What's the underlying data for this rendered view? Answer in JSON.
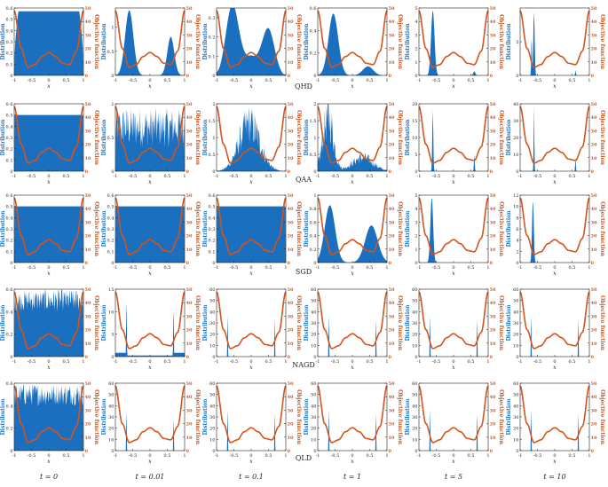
{
  "colors": {
    "dist": "#1a6fbf",
    "obj": "#d4541a",
    "axis": "#222222"
  },
  "labels": {
    "dist": "Distribution",
    "obj": "Objective function",
    "x": "x"
  },
  "x_ticks": [
    "-1",
    "-0.5",
    "0",
    "0.5",
    "1"
  ],
  "right_ticks": [
    "0",
    "10",
    "20",
    "30",
    "40",
    "50"
  ],
  "rows": [
    {
      "name": "QHD",
      "caption": "QHD"
    },
    {
      "name": "QAA",
      "caption": "QAA"
    },
    {
      "name": "SGD",
      "caption": "SGD"
    },
    {
      "name": "NAGD",
      "caption": "NAGD"
    },
    {
      "name": "QLD",
      "caption": "QLD"
    }
  ],
  "columns": [
    "t = 0",
    "t = 0.01",
    "t = 0.1",
    "t = 1",
    "t = 5",
    "t = 10"
  ],
  "chart_data": {
    "type": "area",
    "description_of_grid": "5 methods x 6 times",
    "objective_curve": {
      "x": [
        -1,
        -0.8,
        -0.6,
        -0.4,
        -0.2,
        0,
        0.2,
        0.4,
        0.6,
        0.8,
        1
      ],
      "y": [
        48,
        20,
        6,
        8,
        14,
        17,
        14,
        9,
        8,
        18,
        48
      ]
    },
    "panels": [
      [
        {
          "ylim": [
            0,
            0.6
          ],
          "yticks": [
            "0",
            "0.1",
            "0.2",
            "0.3",
            "0.4",
            "0.5",
            "0.6"
          ],
          "kind": "flat_round",
          "level": 0.57
        },
        {
          "ylim": [
            0,
            1.4
          ],
          "yticks": [
            "0",
            "0.5",
            "1"
          ],
          "kind": "bimodal",
          "peaks": [
            [
              -0.6,
              1.35,
              0.12
            ],
            [
              0.6,
              0.8,
              0.1
            ]
          ]
        },
        {
          "ylim": [
            0,
            0.35
          ],
          "yticks": [
            "0",
            "0.1",
            "0.2",
            "0.3"
          ],
          "kind": "bimodal",
          "peaks": [
            [
              -0.55,
              0.33,
              0.18
            ],
            [
              0.5,
              0.2,
              0.17
            ]
          ],
          "floor": 0.1
        },
        {
          "ylim": [
            0,
            0.6
          ],
          "yticks": [
            "0",
            "0.2",
            "0.4",
            "0.6"
          ],
          "kind": "bimodal",
          "peaks": [
            [
              -0.55,
              0.55,
              0.14
            ],
            [
              0.45,
              0.08,
              0.15
            ]
          ]
        },
        {
          "ylim": [
            0,
            5
          ],
          "yticks": [
            "0",
            "1",
            "2",
            "3",
            "4",
            "5"
          ],
          "kind": "spike",
          "peaks": [
            [
              -0.6,
              4.8,
              0.05
            ],
            [
              0.6,
              0.3,
              0.03
            ]
          ]
        },
        {
          "ylim": [
            0,
            10
          ],
          "yticks": [
            "0",
            "5"
          ],
          "kind": "spike",
          "peaks": [
            [
              -0.6,
              9.5,
              0.02
            ],
            [
              -0.67,
              6,
              0.01
            ],
            [
              0.6,
              0.8,
              0.01
            ]
          ]
        }
      ],
      [
        {
          "ylim": [
            0,
            0.6
          ],
          "yticks": [
            "0",
            "0.1",
            "0.2",
            "0.3",
            "0.4",
            "0.5",
            "0.6"
          ],
          "kind": "flat",
          "level": 0.5
        },
        {
          "ylim": [
            0,
            1
          ],
          "yticks": [
            "0",
            "0.5",
            "1"
          ],
          "kind": "noisy",
          "level": 0.65,
          "amp": 0.3
        },
        {
          "ylim": [
            0,
            2
          ],
          "yticks": [
            "0",
            "0.5",
            "1",
            "1.5",
            "2"
          ],
          "kind": "noisy_bump",
          "peaks": [
            [
              -0.05,
              1.4,
              0.3
            ]
          ],
          "amp": 0.35
        },
        {
          "ylim": [
            0,
            2
          ],
          "yticks": [
            "0",
            "0.5",
            "1",
            "1.5",
            "2"
          ],
          "kind": "noisy_bump",
          "peaks": [
            [
              -0.7,
              1.6,
              0.15
            ],
            [
              0.3,
              0.4,
              0.3
            ]
          ],
          "amp": 0.3
        },
        {
          "ylim": [
            0,
            20
          ],
          "yticks": [
            "0",
            "5",
            "10",
            "15",
            "20"
          ],
          "kind": "spike",
          "peaks": [
            [
              -0.6,
              18,
              0.015
            ],
            [
              0.6,
              5,
              0.012
            ]
          ]
        },
        {
          "ylim": [
            0,
            40
          ],
          "yticks": [
            "0",
            "10",
            "20",
            "30",
            "40"
          ],
          "kind": "spike",
          "peaks": [
            [
              -0.6,
              38,
              0.01
            ],
            [
              0.6,
              8,
              0.01
            ]
          ]
        }
      ],
      [
        {
          "ylim": [
            0,
            0.6
          ],
          "yticks": [
            "0",
            "0.1",
            "0.2",
            "0.3",
            "0.4",
            "0.5",
            "0.6"
          ],
          "kind": "flat",
          "level": 0.5
        },
        {
          "ylim": [
            0,
            0.6
          ],
          "yticks": [
            "0",
            "0.1",
            "0.2",
            "0.3",
            "0.4",
            "0.5",
            "0.6"
          ],
          "kind": "flat",
          "level": 0.5
        },
        {
          "ylim": [
            0,
            0.6
          ],
          "yticks": [
            "0",
            "0.1",
            "0.2",
            "0.3",
            "0.4",
            "0.5",
            "0.6"
          ],
          "kind": "flat",
          "level": 0.5
        },
        {
          "ylim": [
            0,
            1
          ],
          "yticks": [
            "0",
            "0.2",
            "0.4",
            "0.6",
            "0.8",
            "1"
          ],
          "kind": "bimodal",
          "peaks": [
            [
              -0.65,
              0.85,
              0.15
            ],
            [
              0.55,
              0.55,
              0.18
            ]
          ]
        },
        {
          "ylim": [
            0,
            5
          ],
          "yticks": [
            "0",
            "1",
            "2",
            "3",
            "4",
            "5"
          ],
          "kind": "spike",
          "peaks": [
            [
              -0.63,
              4.8,
              0.04
            ]
          ]
        },
        {
          "ylim": [
            0,
            12
          ],
          "yticks": [
            "0",
            "2",
            "4",
            "6",
            "8",
            "10",
            "12"
          ],
          "kind": "spike",
          "peaks": [
            [
              -0.63,
              11,
              0.025
            ]
          ]
        }
      ],
      [
        {
          "ylim": [
            0,
            0.6
          ],
          "yticks": [
            "0",
            "0.2",
            "0.4",
            "0.6"
          ],
          "kind": "noisy",
          "level": 0.5,
          "amp": 0.1
        },
        {
          "ylim": [
            0,
            15
          ],
          "yticks": [
            "0",
            "5",
            "10",
            "15"
          ],
          "kind": "spike_edges",
          "peaks": [
            [
              -0.68,
              14,
              0.008
            ],
            [
              0.68,
              12,
              0.008
            ]
          ]
        },
        {
          "ylim": [
            0,
            60
          ],
          "yticks": [
            "0",
            "10",
            "20",
            "30",
            "40",
            "50",
            "60"
          ],
          "kind": "spike",
          "peaks": [
            [
              -0.68,
              52,
              0.006
            ],
            [
              0.68,
              47,
              0.006
            ]
          ]
        },
        {
          "ylim": [
            0,
            60
          ],
          "yticks": [
            "0",
            "10",
            "20",
            "30",
            "40",
            "50",
            "60"
          ],
          "kind": "spike",
          "peaks": [
            [
              -0.68,
              52,
              0.006
            ],
            [
              0.68,
              47,
              0.006
            ]
          ]
        },
        {
          "ylim": [
            0,
            60
          ],
          "yticks": [
            "0",
            "10",
            "20",
            "30",
            "40",
            "50",
            "60"
          ],
          "kind": "spike",
          "peaks": [
            [
              -0.68,
              52,
              0.006
            ],
            [
              0.68,
              47,
              0.006
            ]
          ]
        },
        {
          "ylim": [
            0,
            60
          ],
          "yticks": [
            "0",
            "10",
            "20",
            "30",
            "40",
            "50",
            "60"
          ],
          "kind": "spike",
          "peaks": [
            [
              -0.68,
              52,
              0.006
            ],
            [
              0.68,
              47,
              0.006
            ]
          ]
        }
      ],
      [
        {
          "ylim": [
            0,
            0.6
          ],
          "yticks": [
            "0",
            "0.2",
            "0.4",
            "0.6"
          ],
          "kind": "noisy",
          "level": 0.5,
          "amp": 0.1
        },
        {
          "ylim": [
            0,
            60
          ],
          "yticks": [
            "0",
            "10",
            "20",
            "30",
            "40",
            "50",
            "60"
          ],
          "kind": "spike",
          "peaks": [
            [
              -0.68,
              50,
              0.006
            ],
            [
              0.68,
              40,
              0.006
            ]
          ]
        },
        {
          "ylim": [
            0,
            60
          ],
          "yticks": [
            "0",
            "10",
            "20",
            "30",
            "40",
            "50",
            "60"
          ],
          "kind": "spike",
          "peaks": [
            [
              -0.68,
              52,
              0.006
            ],
            [
              0.68,
              47,
              0.006
            ]
          ]
        },
        {
          "ylim": [
            0,
            60
          ],
          "yticks": [
            "0",
            "10",
            "20",
            "30",
            "40",
            "50",
            "60"
          ],
          "kind": "spike",
          "peaks": [
            [
              -0.68,
              52,
              0.006
            ],
            [
              0.68,
              47,
              0.006
            ]
          ]
        },
        {
          "ylim": [
            0,
            60
          ],
          "yticks": [
            "0",
            "10",
            "20",
            "30",
            "40",
            "50",
            "60"
          ],
          "kind": "spike",
          "peaks": [
            [
              -0.68,
              52,
              0.006
            ],
            [
              0.68,
              47,
              0.006
            ]
          ]
        },
        {
          "ylim": [
            0,
            60
          ],
          "yticks": [
            "0",
            "10",
            "20",
            "30",
            "40",
            "50",
            "60"
          ],
          "kind": "spike",
          "peaks": [
            [
              -0.68,
              52,
              0.006
            ],
            [
              0.68,
              47,
              0.006
            ]
          ]
        }
      ]
    ]
  }
}
